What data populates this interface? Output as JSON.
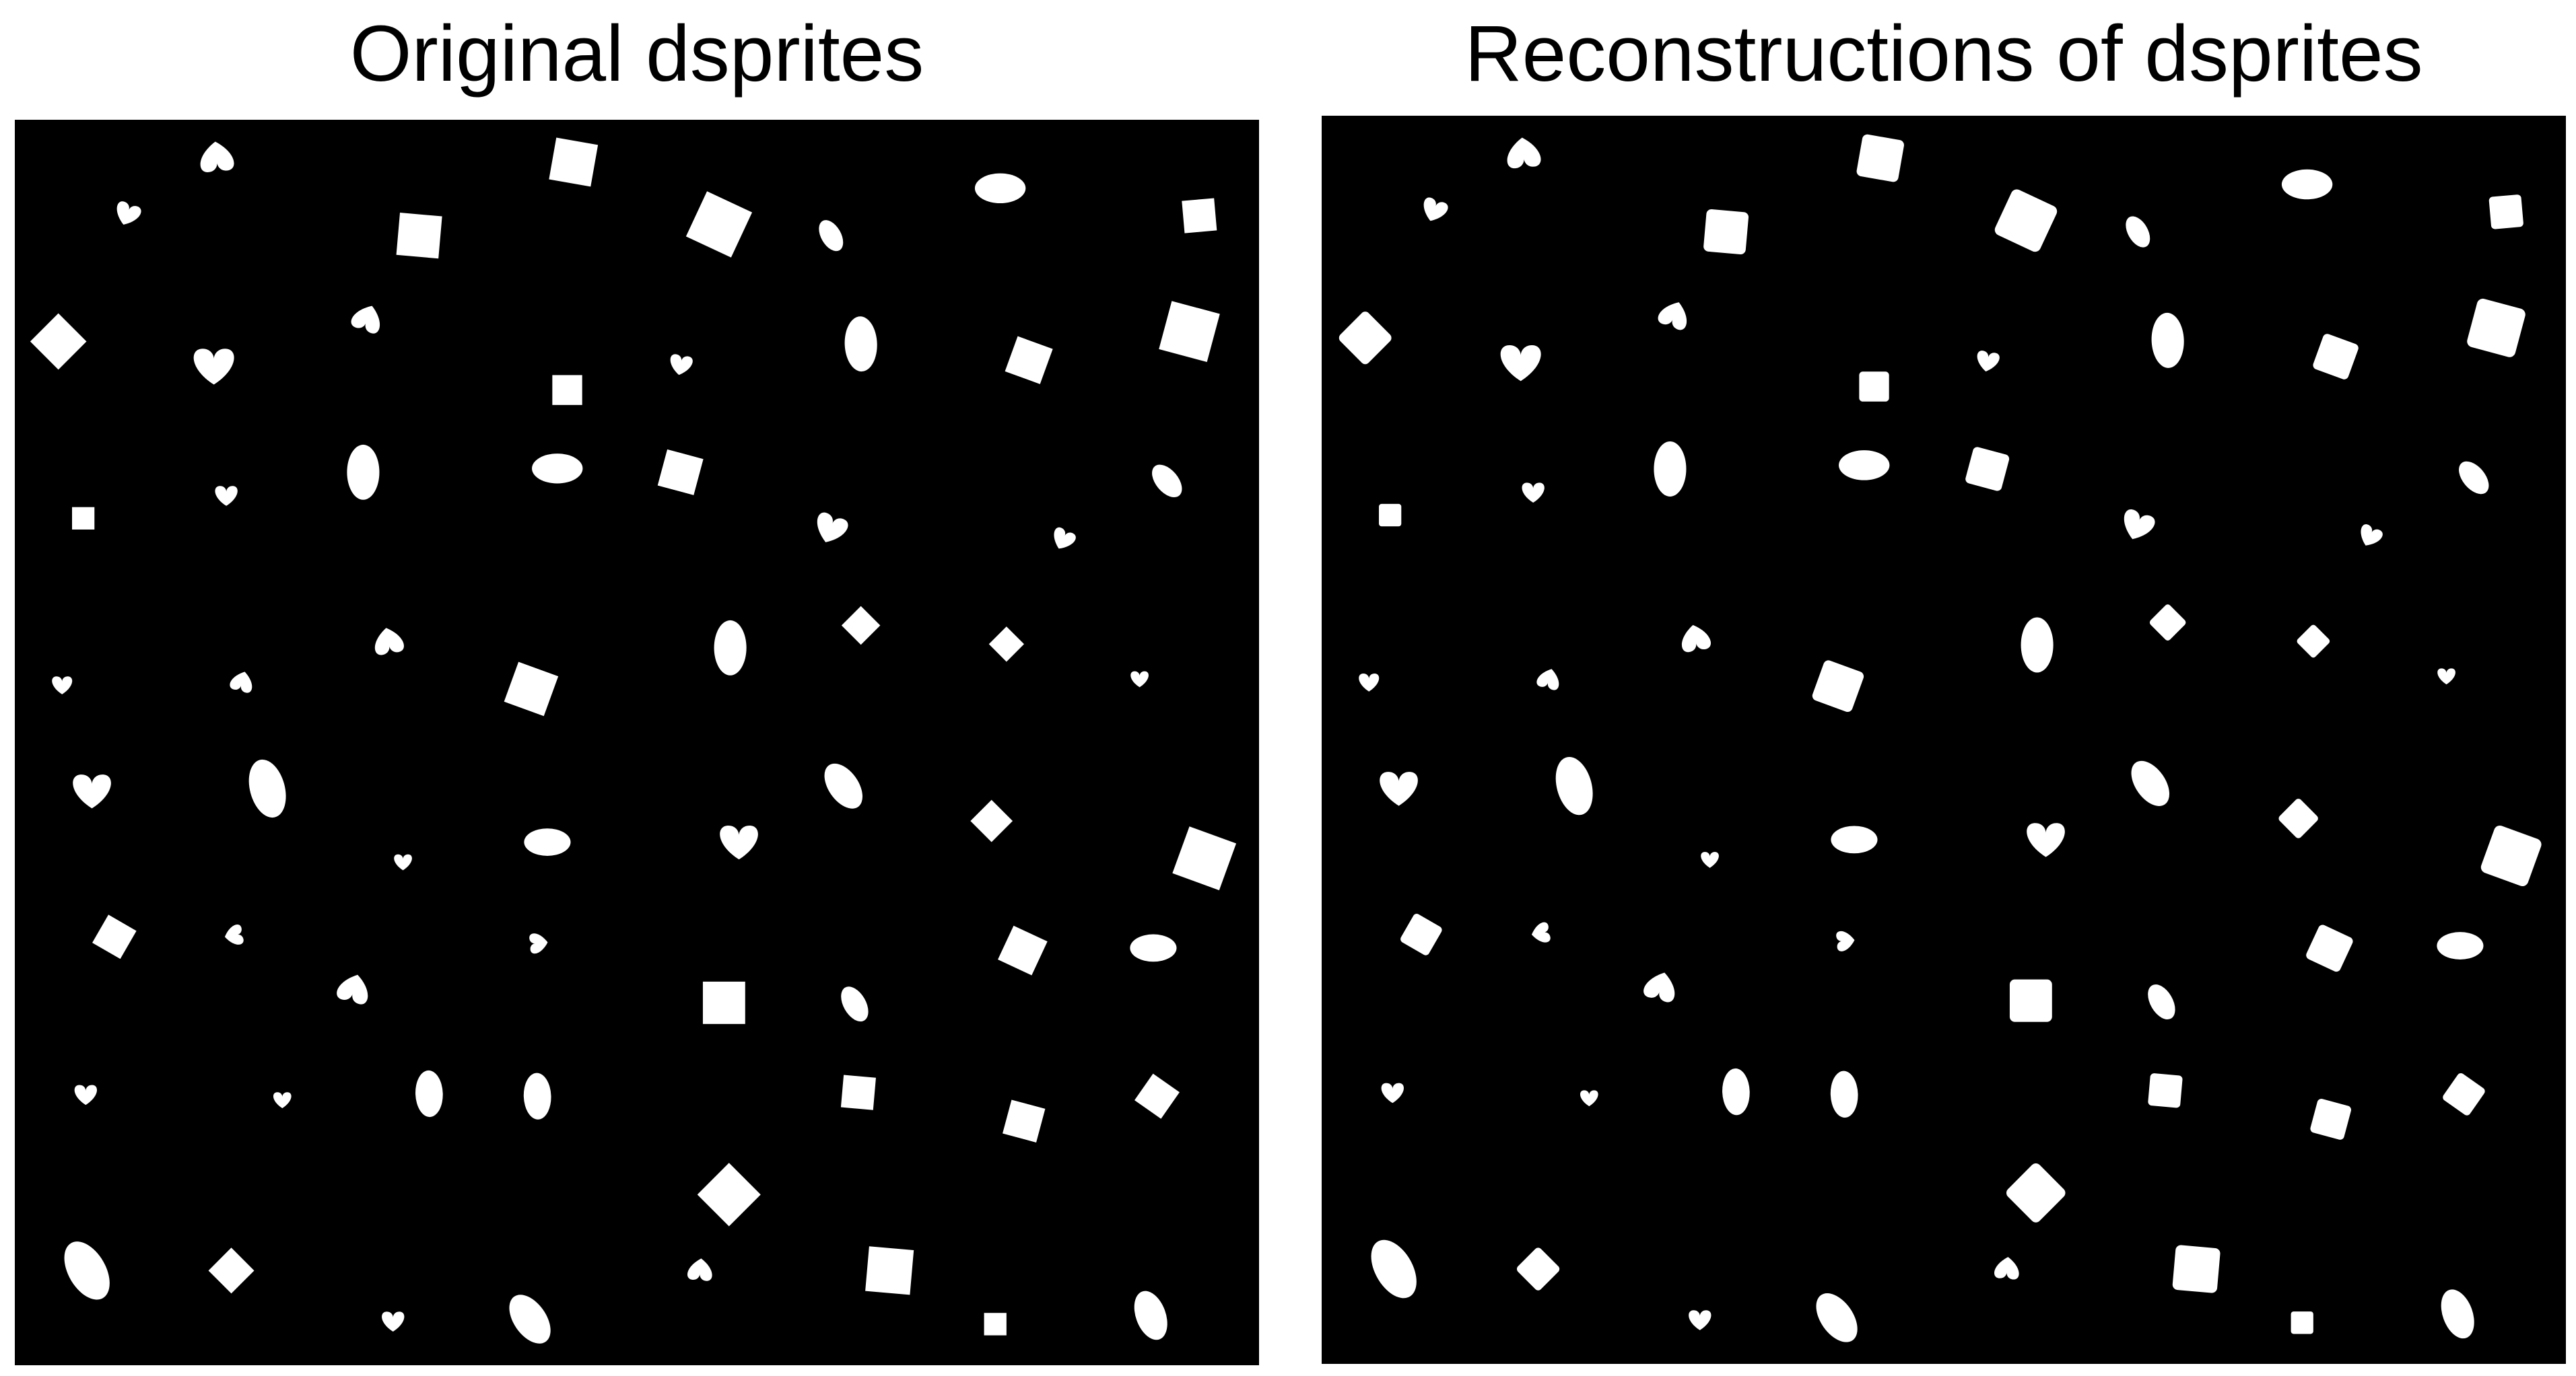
{
  "panels": [
    {
      "id": "original",
      "title": "Original dsprites",
      "grid_rows": 8,
      "grid_cols": 8
    },
    {
      "id": "reconstructions",
      "title": "Reconstructions of dsprites",
      "grid_rows": 8,
      "grid_cols": 8
    }
  ],
  "colors": {
    "page_background": "#ffffff",
    "canvas_background": "#000000",
    "sprite": "#ffffff",
    "title": "#000000"
  },
  "shape_types": [
    "square",
    "ellipse",
    "heart"
  ]
}
